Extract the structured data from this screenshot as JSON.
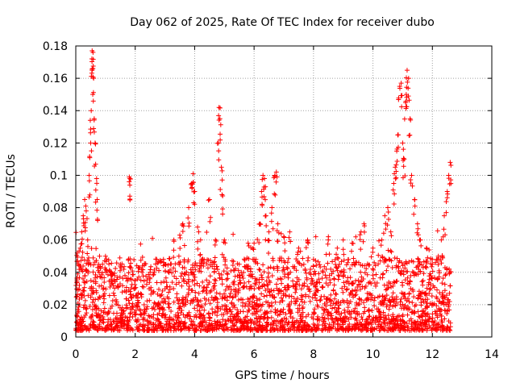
{
  "chart_data": {
    "type": "scatter",
    "title": "Day 062 of 2025, Rate Of TEC Index for receiver dubo",
    "xlabel": "GPS time / hours",
    "ylabel": "ROTI / TECUs",
    "xlim": [
      0,
      14
    ],
    "ylim": [
      0,
      0.18
    ],
    "xticks": [
      "0",
      "2",
      "4",
      "6",
      "8",
      "10",
      "12",
      "14"
    ],
    "yticks": [
      "0",
      "0.02",
      "0.04",
      "0.06",
      "0.08",
      "0.1",
      "0.12",
      "0.14",
      "0.16",
      "0.18"
    ],
    "grid": true,
    "marker": "+",
    "colors": {
      "series": "#ff0000",
      "grid": "#a0a0a0",
      "axis": "#000000"
    },
    "series": [
      {
        "baseline_summary": "dense band of points from x=0 to about 12.6 h, mostly between 0.005 and 0.04 TECU",
        "points": [
          [
            0.05,
            0.052
          ],
          [
            0.1,
            0.045
          ],
          [
            0.15,
            0.055
          ],
          [
            0.2,
            0.065
          ],
          [
            0.25,
            0.075
          ],
          [
            0.3,
            0.085
          ],
          [
            0.35,
            0.078
          ],
          [
            0.4,
            0.06
          ],
          [
            0.45,
            0.1
          ],
          [
            0.5,
            0.12
          ],
          [
            0.52,
            0.14
          ],
          [
            0.55,
            0.165
          ],
          [
            0.55,
            0.177
          ],
          [
            0.58,
            0.176
          ],
          [
            0.6,
            0.16
          ],
          [
            0.62,
            0.135
          ],
          [
            0.65,
            0.12
          ],
          [
            0.7,
            0.098
          ],
          [
            0.72,
            0.085
          ],
          [
            0.8,
            0.05
          ],
          [
            0.9,
            0.045
          ],
          [
            1.0,
            0.05
          ],
          [
            1.2,
            0.04
          ],
          [
            1.5,
            0.045
          ],
          [
            1.8,
            0.099
          ],
          [
            1.82,
            0.098
          ],
          [
            2.0,
            0.035
          ],
          [
            2.5,
            0.04
          ],
          [
            3.0,
            0.045
          ],
          [
            3.3,
            0.06
          ],
          [
            3.5,
            0.063
          ],
          [
            3.6,
            0.07
          ],
          [
            3.8,
            0.08
          ],
          [
            3.9,
            0.095
          ],
          [
            3.95,
            0.101
          ],
          [
            4.0,
            0.09
          ],
          [
            4.1,
            0.068
          ],
          [
            4.2,
            0.06
          ],
          [
            4.5,
            0.085
          ],
          [
            4.7,
            0.06
          ],
          [
            4.8,
            0.12
          ],
          [
            4.82,
            0.142
          ],
          [
            4.85,
            0.135
          ],
          [
            4.9,
            0.105
          ],
          [
            4.92,
            0.088
          ],
          [
            5.0,
            0.06
          ],
          [
            5.5,
            0.045
          ],
          [
            5.8,
            0.058
          ],
          [
            6.0,
            0.058
          ],
          [
            6.2,
            0.07
          ],
          [
            6.25,
            0.09
          ],
          [
            6.3,
            0.1
          ],
          [
            6.35,
            0.098
          ],
          [
            6.4,
            0.075
          ],
          [
            6.5,
            0.065
          ],
          [
            6.6,
            0.08
          ],
          [
            6.7,
            0.1
          ],
          [
            6.75,
            0.102
          ],
          [
            6.8,
            0.07
          ],
          [
            7.0,
            0.062
          ],
          [
            7.2,
            0.065
          ],
          [
            7.5,
            0.055
          ],
          [
            7.8,
            0.06
          ],
          [
            8.0,
            0.048
          ],
          [
            8.5,
            0.062
          ],
          [
            8.8,
            0.055
          ],
          [
            9.0,
            0.06
          ],
          [
            9.3,
            0.058
          ],
          [
            9.6,
            0.065
          ],
          [
            9.7,
            0.07
          ],
          [
            10.0,
            0.055
          ],
          [
            10.3,
            0.06
          ],
          [
            10.4,
            0.075
          ],
          [
            10.5,
            0.08
          ],
          [
            10.6,
            0.065
          ],
          [
            10.7,
            0.095
          ],
          [
            10.75,
            0.105
          ],
          [
            10.8,
            0.115
          ],
          [
            10.85,
            0.125
          ],
          [
            10.9,
            0.155
          ],
          [
            10.95,
            0.157
          ],
          [
            11.0,
            0.12
          ],
          [
            11.05,
            0.11
          ],
          [
            11.1,
            0.145
          ],
          [
            11.12,
            0.15
          ],
          [
            11.15,
            0.165
          ],
          [
            11.2,
            0.16
          ],
          [
            11.25,
            0.135
          ],
          [
            11.3,
            0.1
          ],
          [
            11.4,
            0.085
          ],
          [
            11.5,
            0.07
          ],
          [
            11.6,
            0.06
          ],
          [
            11.8,
            0.055
          ],
          [
            12.0,
            0.045
          ],
          [
            12.2,
            0.05
          ],
          [
            12.3,
            0.06
          ],
          [
            12.4,
            0.075
          ],
          [
            12.5,
            0.09
          ],
          [
            12.55,
            0.1
          ],
          [
            12.6,
            0.108
          ]
        ]
      }
    ]
  }
}
